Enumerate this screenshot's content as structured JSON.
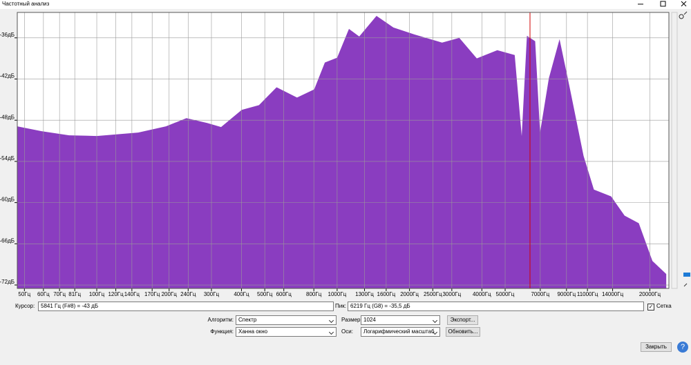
{
  "window": {
    "title": "Частотный анализ"
  },
  "chart_data": {
    "type": "area",
    "color": "#8a3dc0",
    "grid": true,
    "log_x": true,
    "x": [
      46.7,
      58.9,
      76.7,
      100,
      148.7,
      194,
      236,
      288,
      329,
      401,
      473,
      560,
      681,
      803,
      889,
      1000,
      1120,
      1236,
      1458,
      1715,
      2094,
      2733,
      3223,
      3811,
      4638,
      5480,
      5860,
      6160,
      6667,
      6985,
      7600,
      8420,
      9300,
      10600,
      11700,
      13800,
      15700,
      17990,
      20500,
      23400
    ],
    "values": [
      -48.9,
      -49.6,
      -50.2,
      -50.3,
      -49.8,
      -48.9,
      -47.7,
      -48.4,
      -49.0,
      -46.5,
      -45.8,
      -43.2,
      -44.7,
      -43.5,
      -39.6,
      -38.9,
      -34.7,
      -35.8,
      -32.8,
      -34.5,
      -35.5,
      -36.7,
      -36.0,
      -39.0,
      -37.8,
      -38.5,
      -50.3,
      -35.7,
      -36.5,
      -49.8,
      -41.9,
      -36.2,
      -43.4,
      -53.2,
      -58.1,
      -59.1,
      -61.9,
      -63.0,
      -68.5,
      -70.4
    ],
    "xlim": [
      46.7,
      24000
    ],
    "ylim": [
      -72.5,
      -32.3
    ],
    "xticks": [
      {
        "value": 50,
        "label": "50Гц"
      },
      {
        "value": 60,
        "label": "60Гц"
      },
      {
        "value": 70,
        "label": "70Гц"
      },
      {
        "value": 81,
        "label": "81Гц"
      },
      {
        "value": 100,
        "label": "100Гц"
      },
      {
        "value": 120,
        "label": "120Гц"
      },
      {
        "value": 140,
        "label": "140Гц"
      },
      {
        "value": 170,
        "label": "170Гц"
      },
      {
        "value": 200,
        "label": "200Гц"
      },
      {
        "value": 240,
        "label": "240Гц"
      },
      {
        "value": 300,
        "label": "300Гц"
      },
      {
        "value": 400,
        "label": "400Гц"
      },
      {
        "value": 500,
        "label": "500Гц"
      },
      {
        "value": 600,
        "label": "600Гц"
      },
      {
        "value": 800,
        "label": "800Гц"
      },
      {
        "value": 1000,
        "label": "1000Гц"
      },
      {
        "value": 1300,
        "label": "1300Гц"
      },
      {
        "value": 1600,
        "label": "1600Гц"
      },
      {
        "value": 2000,
        "label": "2000Гц"
      },
      {
        "value": 2500,
        "label": "2500Гц"
      },
      {
        "value": 3000,
        "label": "3000Гц"
      },
      {
        "value": 4000,
        "label": "4000Гц"
      },
      {
        "value": 5000,
        "label": "5000Гц"
      },
      {
        "value": 7000,
        "label": "7000Гц"
      },
      {
        "value": 9000,
        "label": "9000Гц"
      },
      {
        "value": 11000,
        "label": "11000Гц"
      },
      {
        "value": 14000,
        "label": "14000Гц"
      },
      {
        "value": 20000,
        "label": "20000Гц"
      }
    ],
    "yticks": [
      {
        "value": -36,
        "label": "-36дБ"
      },
      {
        "value": -42,
        "label": "-42дБ"
      },
      {
        "value": -48,
        "label": "-48дБ"
      },
      {
        "value": -54,
        "label": "-54дБ"
      },
      {
        "value": -60,
        "label": "-60дБ"
      },
      {
        "value": -66,
        "label": "-66дБ"
      },
      {
        "value": -72,
        "label": "-72дБ"
      }
    ]
  },
  "controls": {
    "cursor_label": "Курсор:",
    "cursor_value": "5841 Гц (F#8) = -43 дБ",
    "peak_label": "Пик:",
    "peak_value": "6219 Гц (G8) = -35,5 дБ",
    "grid_label": "Сетка",
    "algorithm_label": "Алгоритм:",
    "algorithm": "Спектр",
    "size_label": "Размер:",
    "size": "1024",
    "export": "Экспорт...",
    "function_label": "Функция:",
    "function": "Ханна окно",
    "axis_label": "Оси:",
    "axis": "Логарифмический масштаб",
    "refresh": "Обновить...",
    "close": "Закрыть",
    "help": "?"
  }
}
